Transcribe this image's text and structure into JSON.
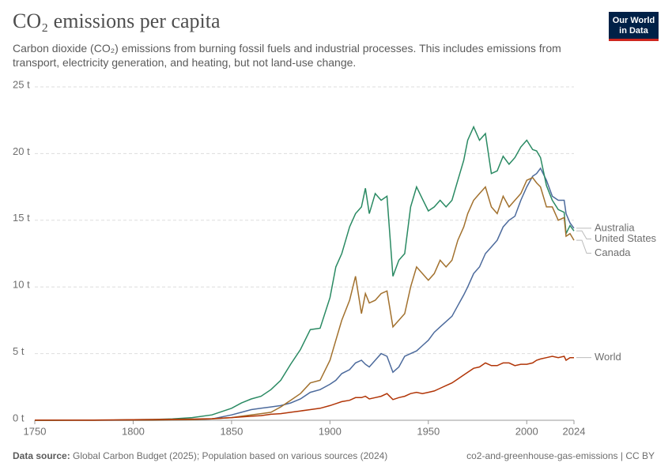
{
  "chart_data": {
    "type": "line",
    "title": "CO₂ emissions per capita",
    "subtitle": "Carbon dioxide (CO₂) emissions from burning fossil fuels and industrial processes. This includes emissions from transport, electricity generation, and heating, but not land-use change.",
    "logo": [
      "Our World",
      "in Data"
    ],
    "source_label": "Data source:",
    "source": "Global Carbon Budget (2025); Population based on various sources (2024)",
    "url_license": "co2-and-greenhouse-gas-emissions | CC BY",
    "grid": true,
    "x": [
      1750,
      1760,
      1770,
      1780,
      1790,
      1800,
      1810,
      1820,
      1830,
      1840,
      1850,
      1855,
      1860,
      1865,
      1870,
      1875,
      1880,
      1885,
      1890,
      1895,
      1900,
      1903,
      1906,
      1910,
      1913,
      1916,
      1918,
      1920,
      1923,
      1926,
      1929,
      1932,
      1935,
      1938,
      1941,
      1944,
      1947,
      1950,
      1953,
      1956,
      1959,
      1962,
      1965,
      1968,
      1970,
      1973,
      1976,
      1979,
      1982,
      1985,
      1988,
      1991,
      1994,
      1997,
      2000,
      2003,
      2005,
      2007,
      2010,
      2013,
      2016,
      2019,
      2020,
      2022,
      2024
    ],
    "xlim": [
      1750,
      2024
    ],
    "xticks": [
      1750,
      1800,
      1850,
      1900,
      1950,
      2000,
      2024
    ],
    "ylim": [
      0,
      25
    ],
    "yticks": [
      {
        "value": 0,
        "label": "0 t"
      },
      {
        "value": 5,
        "label": "5 t"
      },
      {
        "value": 10,
        "label": "10 t"
      },
      {
        "value": 15,
        "label": "15 t"
      },
      {
        "value": 20,
        "label": "20 t"
      },
      {
        "value": 25,
        "label": "25 t"
      }
    ],
    "series": [
      {
        "name": "Australia",
        "color": "#4c6a9c",
        "values": [
          0,
          0,
          0,
          0,
          0,
          0,
          0,
          0.02,
          0.05,
          0.1,
          0.4,
          0.6,
          0.8,
          0.9,
          1.0,
          1.1,
          1.3,
          1.6,
          2.1,
          2.3,
          2.7,
          3.0,
          3.5,
          3.8,
          4.3,
          4.5,
          4.2,
          4.0,
          4.5,
          5.0,
          4.8,
          3.6,
          4.0,
          4.8,
          5.0,
          5.2,
          5.6,
          6.0,
          6.6,
          7.0,
          7.4,
          7.8,
          8.6,
          9.4,
          10.0,
          11.0,
          11.5,
          12.5,
          13.0,
          13.5,
          14.5,
          15.0,
          15.3,
          16.5,
          17.5,
          18.3,
          18.5,
          18.9,
          18.0,
          16.8,
          16.5,
          16.5,
          15.5,
          14.8,
          14.4
        ]
      },
      {
        "name": "United States",
        "color": "#2a8a63",
        "values": [
          0,
          0,
          0.01,
          0.01,
          0.02,
          0.04,
          0.06,
          0.1,
          0.2,
          0.4,
          0.9,
          1.3,
          1.6,
          1.8,
          2.3,
          3.0,
          4.2,
          5.3,
          6.8,
          6.9,
          9.2,
          11.5,
          12.5,
          14.5,
          15.5,
          16.0,
          17.4,
          15.5,
          17.0,
          16.5,
          16.8,
          10.8,
          12.0,
          12.5,
          16.0,
          17.5,
          16.6,
          15.7,
          16.0,
          16.5,
          16.0,
          16.5,
          18.0,
          19.5,
          21.0,
          22.0,
          21.0,
          21.5,
          18.5,
          18.7,
          19.8,
          19.2,
          19.7,
          20.5,
          21.0,
          20.3,
          20.2,
          19.7,
          17.6,
          16.5,
          15.8,
          15.6,
          14.0,
          14.6,
          14.2
        ]
      },
      {
        "name": "Canada",
        "color": "#a2712e",
        "values": [
          0,
          0,
          0,
          0,
          0.01,
          0.01,
          0.02,
          0.03,
          0.05,
          0.1,
          0.2,
          0.3,
          0.4,
          0.5,
          0.6,
          1.0,
          1.5,
          2.0,
          2.8,
          3.0,
          4.5,
          6.0,
          7.5,
          9.0,
          10.8,
          8.0,
          9.5,
          8.8,
          9.0,
          9.5,
          9.7,
          7.0,
          7.5,
          8.0,
          10.0,
          11.5,
          11.0,
          10.5,
          11.0,
          12.0,
          11.5,
          12.0,
          13.5,
          14.5,
          15.5,
          16.5,
          17.0,
          17.5,
          16.0,
          15.5,
          16.8,
          16.0,
          16.5,
          17.0,
          18.0,
          18.2,
          17.8,
          17.5,
          16.0,
          16.0,
          15.0,
          15.2,
          13.8,
          14.0,
          13.5
        ]
      },
      {
        "name": "World",
        "color": "#b13507",
        "values": [
          0.01,
          0.01,
          0.02,
          0.02,
          0.03,
          0.05,
          0.06,
          0.07,
          0.09,
          0.12,
          0.2,
          0.25,
          0.3,
          0.35,
          0.45,
          0.5,
          0.6,
          0.7,
          0.8,
          0.9,
          1.1,
          1.25,
          1.4,
          1.5,
          1.7,
          1.7,
          1.8,
          1.6,
          1.7,
          1.8,
          2.0,
          1.55,
          1.7,
          1.8,
          2.0,
          2.1,
          2.0,
          2.1,
          2.2,
          2.4,
          2.6,
          2.8,
          3.1,
          3.4,
          3.6,
          3.9,
          4.0,
          4.3,
          4.1,
          4.1,
          4.3,
          4.3,
          4.1,
          4.2,
          4.2,
          4.3,
          4.5,
          4.6,
          4.7,
          4.8,
          4.7,
          4.8,
          4.5,
          4.7,
          4.7
        ]
      }
    ]
  }
}
